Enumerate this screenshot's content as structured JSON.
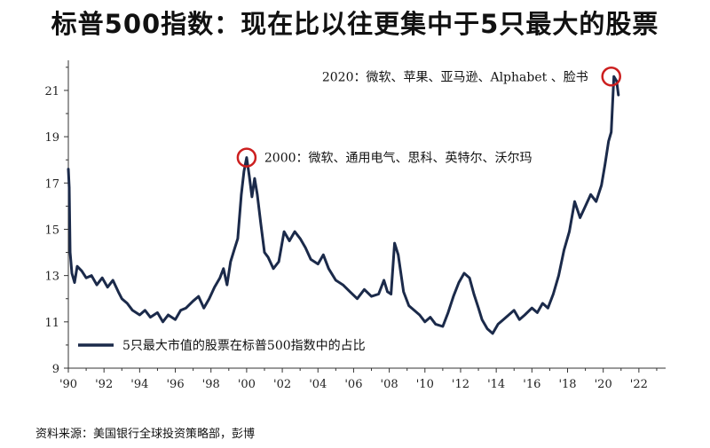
{
  "title": "标普500指数：现在比以往更集中于5只最大的股票",
  "source": "资料来源：美国银行全球投资策略部，彭博",
  "colors": {
    "series": "#1b2a4a",
    "highlight": "#cc1f1f",
    "axis": "#333333"
  },
  "chart_data": {
    "type": "line",
    "title": "标普500指数：现在比以往更集中于5只最大的股票",
    "xlabel": "",
    "ylabel": "",
    "ylim": [
      9,
      22.3
    ],
    "xlim": [
      1990,
      2023.5
    ],
    "yticks": [
      9,
      11,
      13,
      15,
      17,
      19,
      21
    ],
    "xticks": [
      {
        "v": 1990,
        "label": "'90"
      },
      {
        "v": 1992,
        "label": "'92"
      },
      {
        "v": 1994,
        "label": "'94"
      },
      {
        "v": 1996,
        "label": "'96"
      },
      {
        "v": 1998,
        "label": "'98"
      },
      {
        "v": 2000,
        "label": "'00"
      },
      {
        "v": 2002,
        "label": "'02"
      },
      {
        "v": 2004,
        "label": "'04"
      },
      {
        "v": 2006,
        "label": "'06"
      },
      {
        "v": 2008,
        "label": "'08"
      },
      {
        "v": 2010,
        "label": "'10"
      },
      {
        "v": 2012,
        "label": "'12"
      },
      {
        "v": 2014,
        "label": "'14"
      },
      {
        "v": 2016,
        "label": "'16"
      },
      {
        "v": 2018,
        "label": "'18"
      },
      {
        "v": 2020,
        "label": "'20"
      },
      {
        "v": 2022,
        "label": "'22"
      }
    ],
    "grid": false,
    "legend_position": "bottom-left",
    "series": [
      {
        "name": "5只最大市值的股票在标普500指数中的占比",
        "x": [
          1990.0,
          1990.05,
          1990.1,
          1990.2,
          1990.35,
          1990.5,
          1990.75,
          1991.0,
          1991.3,
          1991.6,
          1991.9,
          1992.2,
          1992.5,
          1992.8,
          1993.0,
          1993.3,
          1993.6,
          1994.0,
          1994.3,
          1994.6,
          1995.0,
          1995.3,
          1995.6,
          1996.0,
          1996.3,
          1996.6,
          1997.0,
          1997.3,
          1997.6,
          1997.9,
          1998.2,
          1998.5,
          1998.7,
          1998.9,
          1999.1,
          1999.3,
          1999.5,
          1999.7,
          1999.85,
          2000.0,
          2000.15,
          2000.3,
          2000.45,
          2000.6,
          2000.8,
          2001.0,
          2001.2,
          2001.5,
          2001.8,
          2002.1,
          2002.4,
          2002.7,
          2003.0,
          2003.3,
          2003.6,
          2004.0,
          2004.3,
          2004.6,
          2005.0,
          2005.4,
          2005.8,
          2006.2,
          2006.6,
          2007.0,
          2007.4,
          2007.7,
          2007.9,
          2008.1,
          2008.3,
          2008.5,
          2008.8,
          2009.1,
          2009.4,
          2009.7,
          2010.0,
          2010.3,
          2010.6,
          2011.0,
          2011.3,
          2011.6,
          2011.9,
          2012.2,
          2012.5,
          2012.75,
          2013.0,
          2013.2,
          2013.5,
          2013.8,
          2014.1,
          2014.4,
          2014.7,
          2015.0,
          2015.3,
          2015.6,
          2016.0,
          2016.3,
          2016.6,
          2016.9,
          2017.2,
          2017.5,
          2017.8,
          2018.1,
          2018.4,
          2018.7,
          2019.0,
          2019.3,
          2019.6,
          2019.9,
          2020.1,
          2020.3,
          2020.45,
          2020.6,
          2020.75,
          2020.85
        ],
        "y": [
          17.6,
          16.8,
          14.0,
          13.1,
          12.7,
          13.4,
          13.2,
          12.9,
          13.0,
          12.6,
          12.9,
          12.5,
          12.8,
          12.3,
          12.0,
          11.8,
          11.5,
          11.3,
          11.5,
          11.2,
          11.4,
          11.0,
          11.3,
          11.1,
          11.5,
          11.6,
          11.9,
          12.1,
          11.6,
          12.0,
          12.5,
          12.9,
          13.3,
          12.6,
          13.6,
          14.1,
          14.6,
          16.5,
          17.5,
          18.1,
          17.3,
          16.4,
          17.2,
          16.5,
          15.2,
          14.0,
          13.8,
          13.3,
          13.6,
          14.9,
          14.5,
          14.9,
          14.6,
          14.2,
          13.7,
          13.5,
          13.9,
          13.3,
          12.8,
          12.6,
          12.3,
          12.0,
          12.4,
          12.1,
          12.2,
          12.8,
          12.3,
          12.2,
          14.4,
          13.9,
          12.3,
          11.7,
          11.5,
          11.3,
          11.0,
          11.2,
          10.9,
          10.8,
          11.4,
          12.1,
          12.7,
          13.1,
          12.9,
          12.2,
          11.6,
          11.1,
          10.7,
          10.5,
          10.9,
          11.1,
          11.3,
          11.5,
          11.1,
          11.3,
          11.6,
          11.4,
          11.8,
          11.6,
          12.2,
          13.0,
          14.1,
          14.9,
          16.2,
          15.5,
          16.0,
          16.5,
          16.2,
          16.9,
          17.8,
          18.8,
          19.2,
          21.6,
          21.4,
          20.8
        ]
      }
    ],
    "annotations": [
      {
        "x": 2000.0,
        "y": 18.1,
        "text": "2000：微软、通用电气、思科、英特尔、沃尔玛"
      },
      {
        "x": 2020.45,
        "y": 21.6,
        "text": "2020：微软、苹果、亚马逊、Alphabet 、脸书"
      }
    ]
  }
}
